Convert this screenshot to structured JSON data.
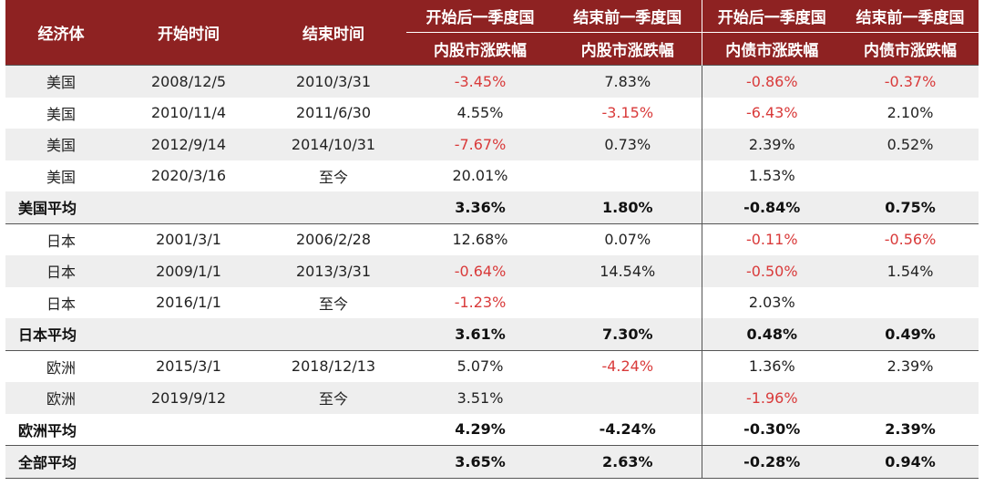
{
  "table": {
    "headers": {
      "economy": "经济体",
      "start": "开始时间",
      "end": "结束时间",
      "stock_after_line1": "开始后一季度国",
      "stock_after_line2": "内股市涨跌幅",
      "stock_before_line1": "结束前一季度国",
      "stock_before_line2": "内股市涨跌幅",
      "bond_after_line1": "开始后一季度国",
      "bond_after_line2": "内债市涨跌幅",
      "bond_before_line1": "结束前一季度国",
      "bond_before_line2": "内债市涨跌幅"
    },
    "rows": [
      {
        "economy": "美国",
        "start": "2008/12/5",
        "end": "2010/3/31",
        "stock_after": "-3.45%",
        "stock_before": "7.83%",
        "bond_after": "-0.86%",
        "bond_before": "-0.37%"
      },
      {
        "economy": "美国",
        "start": "2010/11/4",
        "end": "2011/6/30",
        "stock_after": "4.55%",
        "stock_before": "-3.15%",
        "bond_after": "-6.43%",
        "bond_before": "2.10%"
      },
      {
        "economy": "美国",
        "start": "2012/9/14",
        "end": "2014/10/31",
        "stock_after": "-7.67%",
        "stock_before": "0.73%",
        "bond_after": "2.39%",
        "bond_before": "0.52%"
      },
      {
        "economy": "美国",
        "start": "2020/3/16",
        "end": "至今",
        "stock_after": "20.01%",
        "stock_before": "",
        "bond_after": "1.53%",
        "bond_before": ""
      },
      {
        "economy": "美国平均",
        "start": "",
        "end": "",
        "stock_after": "3.36%",
        "stock_before": "1.80%",
        "bond_after": "-0.84%",
        "bond_before": "0.75%"
      },
      {
        "economy": "日本",
        "start": "2001/3/1",
        "end": "2006/2/28",
        "stock_after": "12.68%",
        "stock_before": "0.07%",
        "bond_after": "-0.11%",
        "bond_before": "-0.56%"
      },
      {
        "economy": "日本",
        "start": "2009/1/1",
        "end": "2013/3/31",
        "stock_after": "-0.64%",
        "stock_before": "14.54%",
        "bond_after": "-0.50%",
        "bond_before": "1.54%"
      },
      {
        "economy": "日本",
        "start": "2016/1/1",
        "end": "至今",
        "stock_after": "-1.23%",
        "stock_before": "",
        "bond_after": "2.03%",
        "bond_before": ""
      },
      {
        "economy": "日本平均",
        "start": "",
        "end": "",
        "stock_after": "3.61%",
        "stock_before": "7.30%",
        "bond_after": "0.48%",
        "bond_before": "0.49%"
      },
      {
        "economy": "欧洲",
        "start": "2015/3/1",
        "end": "2018/12/13",
        "stock_after": "5.07%",
        "stock_before": "-4.24%",
        "bond_after": "1.36%",
        "bond_before": "2.39%"
      },
      {
        "economy": "欧洲",
        "start": "2019/9/12",
        "end": "至今",
        "stock_after": "3.51%",
        "stock_before": "",
        "bond_after": "-1.96%",
        "bond_before": ""
      },
      {
        "economy": "欧洲平均",
        "start": "",
        "end": "",
        "stock_after": "4.29%",
        "stock_before": "-4.24%",
        "bond_after": "-0.30%",
        "bond_before": "2.39%"
      },
      {
        "economy": "全部平均",
        "start": "",
        "end": "",
        "stock_after": "3.65%",
        "stock_before": "2.63%",
        "bond_after": "-0.28%",
        "bond_before": "0.94%"
      }
    ]
  },
  "colors": {
    "header_bg": "#8e2222",
    "negative_text": "#d93a3a",
    "shade_bg": "#eeeeee"
  }
}
